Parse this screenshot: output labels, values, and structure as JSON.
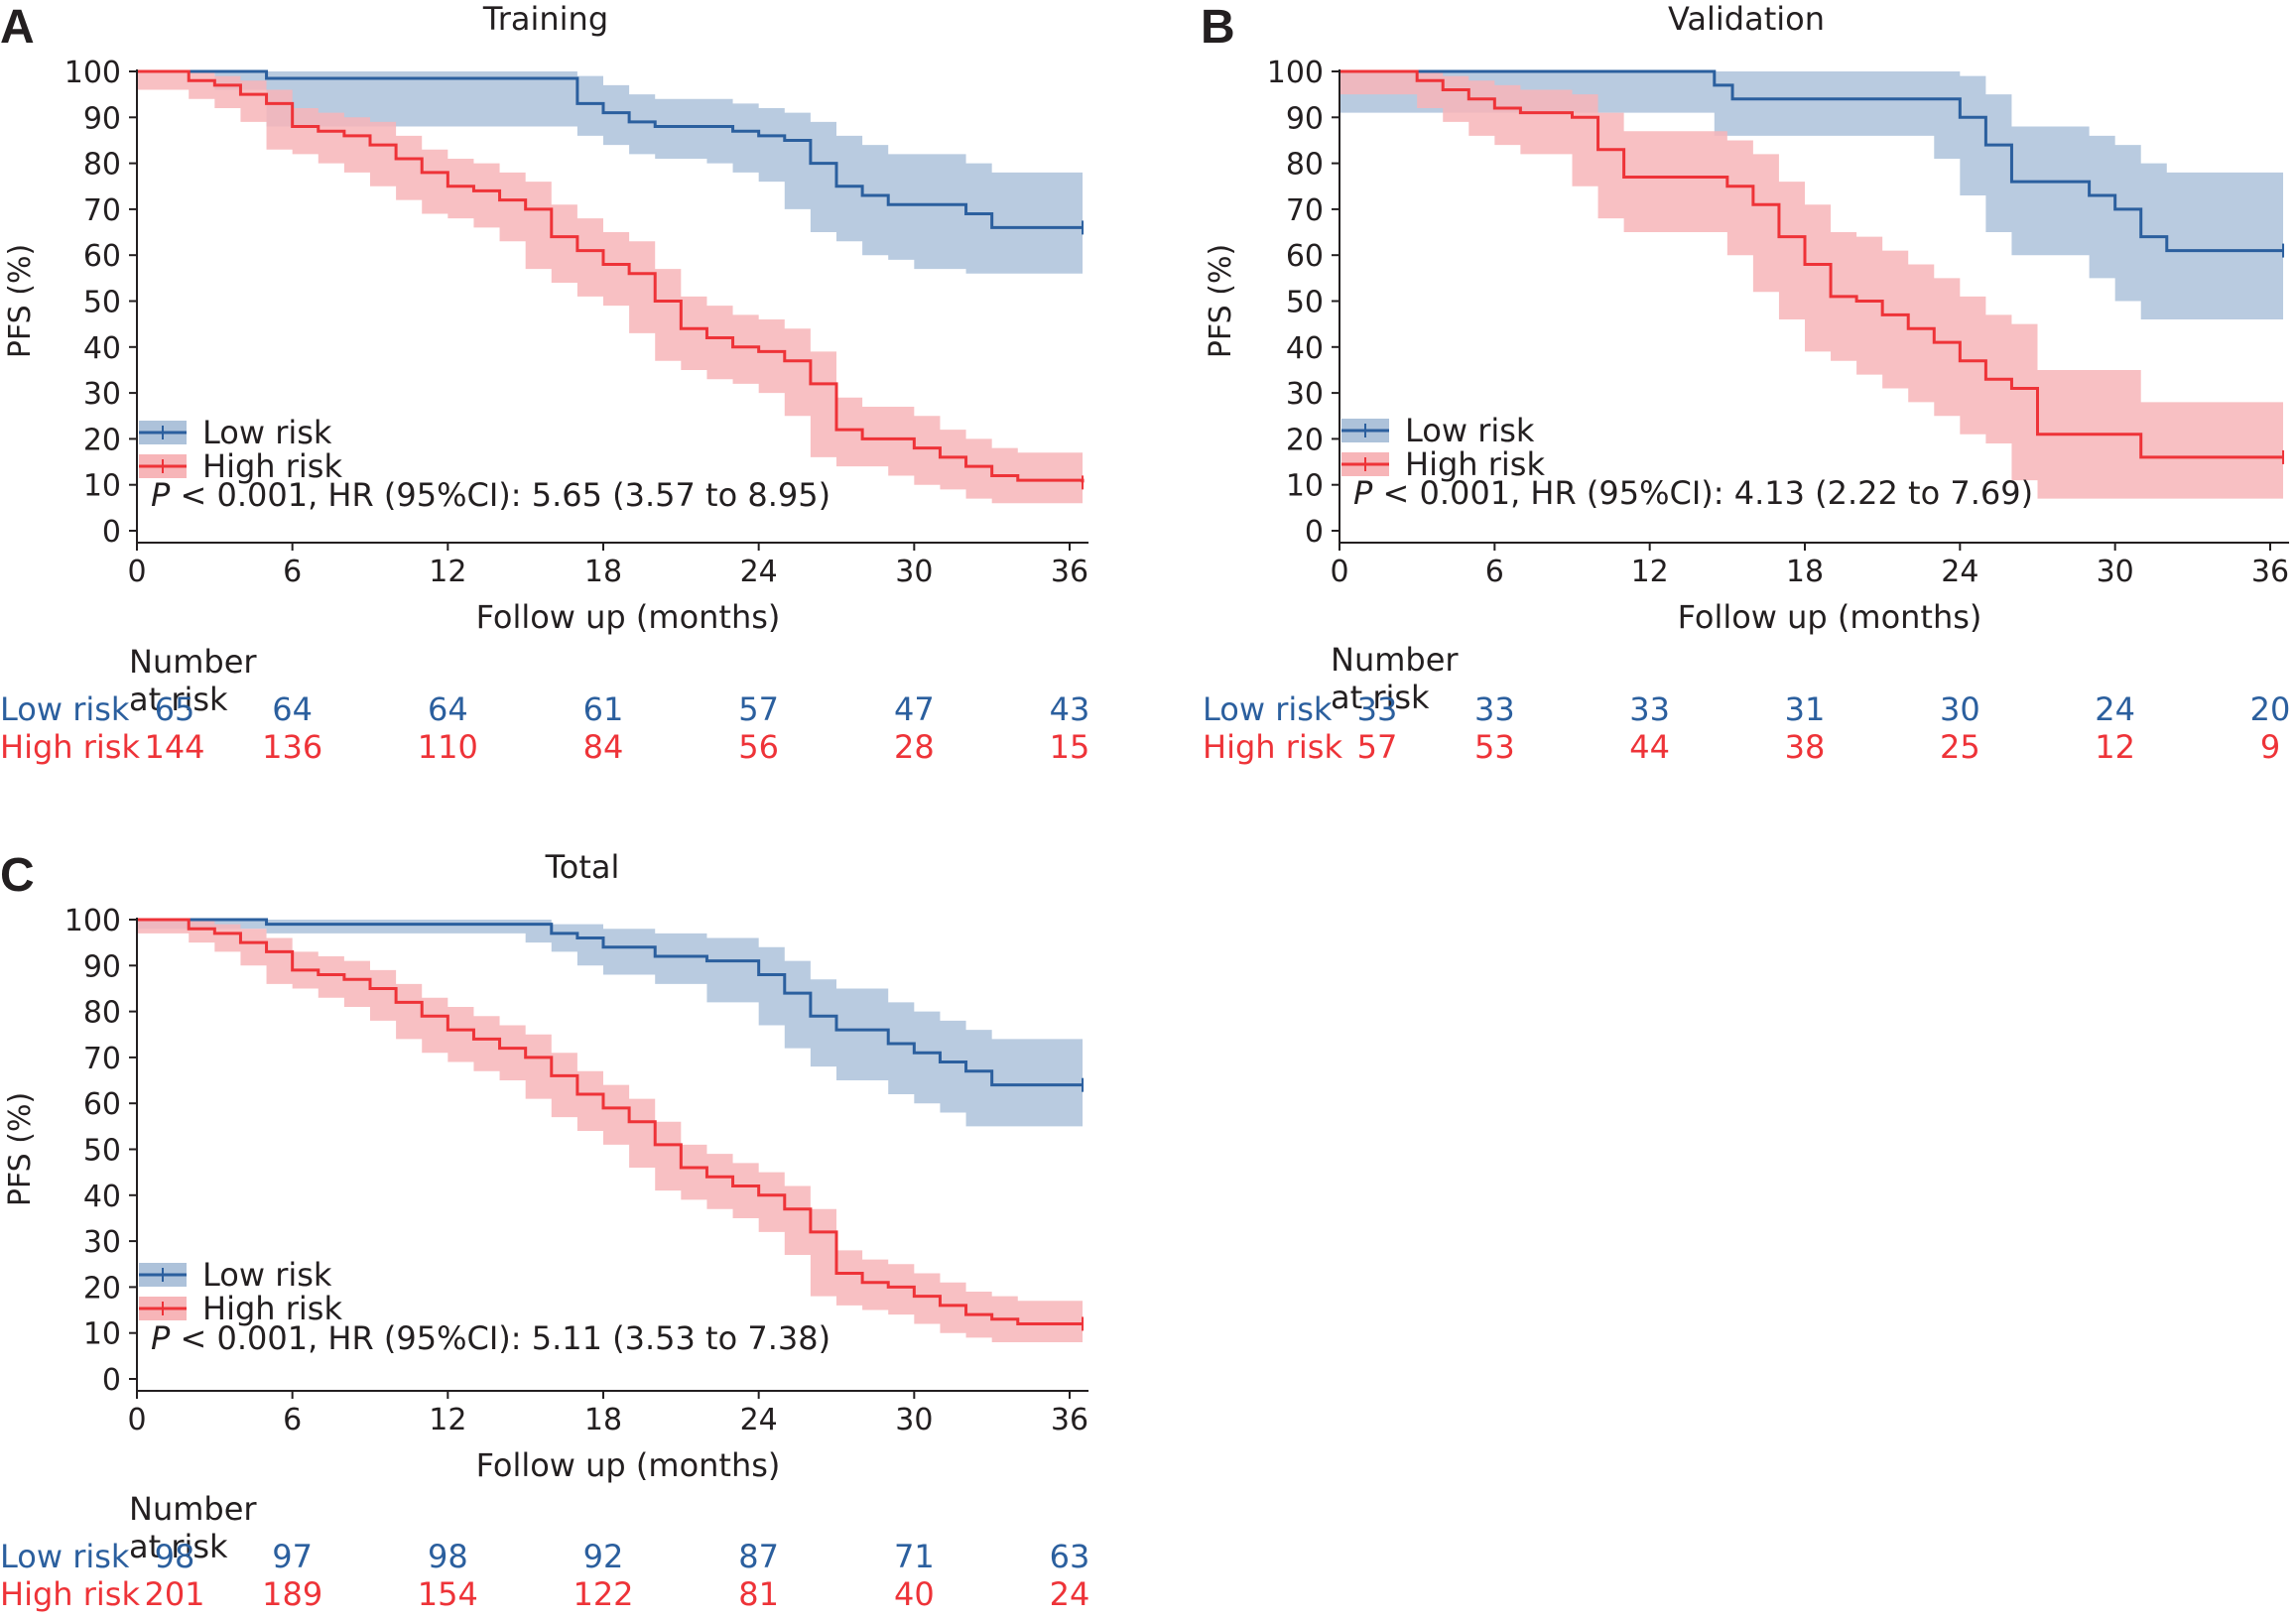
{
  "colors": {
    "low": "#2b5f9e",
    "high": "#ee3338",
    "low_band": "#adc2da",
    "high_band": "#f7b5b8",
    "axis": "#231f20"
  },
  "legend": {
    "low": "Low risk",
    "high": "High risk"
  },
  "risk_table_header": "Number at risk",
  "panels": [
    {
      "letter": "A",
      "title": "Training",
      "ylabel": "PFS (%)",
      "xlabel": "Follow up (months)",
      "p_prefix": "P",
      "stats": " < 0.001, HR (95%CI): 5.65 (3.57 to 8.95)",
      "risk": {
        "x": [
          0,
          6,
          12,
          18,
          24,
          30,
          36
        ],
        "low": [
          "65",
          "64",
          "64",
          "61",
          "57",
          "47",
          "43"
        ],
        "high": [
          "144",
          "136",
          "110",
          "84",
          "56",
          "28",
          "15"
        ]
      }
    },
    {
      "letter": "B",
      "title": "Validation",
      "ylabel": "PFS (%)",
      "xlabel": "Follow up (months)",
      "p_prefix": "P",
      "stats": " < 0.001, HR (95%CI): 4.13 (2.22 to 7.69)",
      "risk": {
        "x": [
          0,
          6,
          12,
          18,
          24,
          30,
          36
        ],
        "low": [
          "33",
          "33",
          "33",
          "31",
          "30",
          "24",
          "20"
        ],
        "high": [
          "57",
          "53",
          "44",
          "38",
          "25",
          "12",
          "9"
        ]
      }
    },
    {
      "letter": "C",
      "title": "Total",
      "ylabel": "PFS (%)",
      "xlabel": "Follow up (months)",
      "p_prefix": "P",
      "stats": " < 0.001, HR (95%CI): 5.11 (3.53 to 7.38)",
      "risk": {
        "x": [
          0,
          6,
          12,
          18,
          24,
          30,
          36
        ],
        "low": [
          "98",
          "97",
          "98",
          "92",
          "87",
          "71",
          "63"
        ],
        "high": [
          "201",
          "189",
          "154",
          "122",
          "81",
          "40",
          "24"
        ]
      }
    }
  ],
  "chart_data": [
    {
      "type": "line",
      "title": "Training",
      "xlabel": "Follow up (months)",
      "ylabel": "PFS (%)",
      "xlim": [
        0,
        36.5
      ],
      "ylim": [
        0,
        100
      ],
      "xticks": [
        0,
        6,
        12,
        18,
        24,
        30,
        36
      ],
      "yticks": [
        0,
        10,
        20,
        30,
        40,
        50,
        60,
        70,
        80,
        90,
        100
      ],
      "series": [
        {
          "name": "Low risk",
          "x": [
            0,
            3,
            5,
            17,
            18,
            19,
            20,
            22,
            23,
            24,
            25,
            26,
            27,
            28,
            29,
            30,
            32,
            33,
            36.5
          ],
          "y": [
            100,
            100,
            98.5,
            93,
            91,
            89,
            88,
            88,
            87,
            86,
            85,
            80,
            75,
            73,
            71,
            71,
            69,
            66,
            66
          ],
          "lower": [
            100,
            100,
            96,
            88,
            86,
            84,
            82,
            81,
            80,
            78,
            76,
            70,
            65,
            63,
            60,
            59,
            57,
            56,
            56
          ],
          "upper": [
            100,
            100,
            100,
            99,
            97,
            95,
            94,
            94,
            93,
            92,
            91,
            89,
            86,
            84,
            82,
            82,
            80,
            78,
            78
          ]
        },
        {
          "name": "High risk",
          "x": [
            0,
            2,
            3,
            4,
            5,
            6,
            7,
            8,
            9,
            10,
            11,
            12,
            13,
            14,
            15,
            16,
            17,
            18,
            19,
            20,
            21,
            22,
            23,
            24,
            25,
            26,
            27,
            28,
            29,
            30,
            31,
            32,
            33,
            34,
            36.5
          ],
          "y": [
            100,
            98,
            97,
            95,
            93,
            88,
            87,
            86,
            84,
            81,
            78,
            75,
            74,
            72,
            70,
            64,
            61,
            58,
            56,
            50,
            44,
            42,
            40,
            39,
            37,
            32,
            22,
            20,
            20,
            18,
            16,
            14,
            12,
            11,
            10.5
          ],
          "lower": [
            100,
            96,
            94,
            92,
            89,
            83,
            82,
            80,
            78,
            75,
            72,
            69,
            68,
            66,
            63,
            57,
            54,
            51,
            49,
            43,
            37,
            35,
            33,
            32,
            30,
            25,
            16,
            14,
            14,
            12,
            10,
            9,
            7,
            6,
            6
          ],
          "upper": [
            100,
            100,
            99,
            98,
            96,
            92,
            91,
            90,
            89,
            86,
            83,
            81,
            80,
            78,
            76,
            71,
            68,
            65,
            63,
            57,
            51,
            49,
            47,
            46,
            44,
            39,
            29,
            27,
            27,
            25,
            22,
            20,
            18,
            17,
            16
          ]
        }
      ]
    },
    {
      "type": "line",
      "title": "Validation",
      "xlabel": "Follow up (months)",
      "ylabel": "PFS (%)",
      "xlim": [
        0,
        36.5
      ],
      "ylim": [
        0,
        100
      ],
      "xticks": [
        0,
        6,
        12,
        18,
        24,
        30,
        36
      ],
      "yticks": [
        0,
        10,
        20,
        30,
        40,
        50,
        60,
        70,
        80,
        90,
        100
      ],
      "series": [
        {
          "name": "Low risk",
          "x": [
            0,
            14.5,
            15.2,
            23,
            24,
            25,
            26,
            29,
            30,
            31,
            32,
            36.5
          ],
          "y": [
            100,
            97,
            94,
            94,
            90,
            84,
            76,
            73,
            70,
            64,
            61,
            61
          ],
          "lower": [
            100,
            91,
            86,
            86,
            81,
            73,
            65,
            60,
            55,
            50,
            46,
            46
          ],
          "upper": [
            100,
            100,
            100,
            100,
            99,
            95,
            88,
            86,
            84,
            80,
            78,
            78
          ]
        },
        {
          "name": "High risk",
          "x": [
            0,
            3,
            4,
            5,
            6,
            7,
            9,
            10,
            11,
            15,
            16,
            17,
            18,
            19,
            20,
            21,
            22,
            23,
            24,
            25,
            26,
            27,
            31,
            36.5
          ],
          "y": [
            100,
            98,
            96,
            94,
            92,
            91,
            90,
            83,
            77,
            75,
            71,
            64,
            58,
            51,
            50,
            47,
            44,
            41,
            37,
            33,
            31,
            21,
            16,
            16
          ],
          "lower": [
            100,
            95,
            92,
            89,
            86,
            84,
            82,
            75,
            68,
            65,
            60,
            52,
            46,
            39,
            37,
            34,
            31,
            28,
            25,
            21,
            19,
            11,
            7,
            7
          ],
          "upper": [
            100,
            100,
            99,
            98,
            97,
            96,
            95,
            91,
            87,
            85,
            82,
            76,
            71,
            65,
            64,
            61,
            58,
            55,
            51,
            47,
            45,
            35,
            28,
            28
          ]
        }
      ]
    },
    {
      "type": "line",
      "title": "Total",
      "xlabel": "Follow up (months)",
      "ylabel": "PFS (%)",
      "xlim": [
        0,
        36.5
      ],
      "ylim": [
        0,
        100
      ],
      "xticks": [
        0,
        6,
        12,
        18,
        24,
        30,
        36
      ],
      "yticks": [
        0,
        10,
        20,
        30,
        40,
        50,
        60,
        70,
        80,
        90,
        100
      ],
      "series": [
        {
          "name": "Low risk",
          "x": [
            0,
            5,
            15,
            16,
            17,
            18,
            20,
            22,
            24,
            25,
            26,
            27,
            29,
            30,
            31,
            32,
            33,
            36.5
          ],
          "y": [
            100,
            99,
            99,
            97,
            96,
            94,
            92,
            91,
            88,
            84,
            79,
            76,
            73,
            71,
            69,
            67,
            64,
            64
          ],
          "lower": [
            100,
            98,
            97,
            95,
            93,
            90,
            88,
            86,
            82,
            77,
            72,
            68,
            65,
            62,
            60,
            58,
            55,
            55
          ],
          "upper": [
            100,
            100,
            100,
            99,
            99,
            98,
            97,
            96,
            94,
            91,
            87,
            85,
            82,
            80,
            78,
            76,
            74,
            74
          ]
        },
        {
          "name": "High risk",
          "x": [
            0,
            2,
            3,
            4,
            5,
            6,
            7,
            8,
            9,
            10,
            11,
            12,
            13,
            14,
            15,
            16,
            17,
            18,
            19,
            20,
            21,
            22,
            23,
            24,
            25,
            26,
            27,
            28,
            29,
            30,
            31,
            32,
            33,
            34,
            36.5
          ],
          "y": [
            100,
            98,
            97,
            95,
            93,
            89,
            88,
            87,
            85,
            82,
            79,
            76,
            74,
            72,
            70,
            66,
            62,
            59,
            56,
            51,
            46,
            44,
            42,
            40,
            37,
            32,
            23,
            21,
            20,
            18,
            16,
            14,
            13,
            12,
            12
          ],
          "lower": [
            100,
            97,
            95,
            93,
            90,
            86,
            85,
            83,
            81,
            78,
            74,
            71,
            69,
            67,
            65,
            61,
            57,
            54,
            51,
            46,
            41,
            39,
            37,
            35,
            32,
            27,
            18,
            16,
            15,
            14,
            12,
            10,
            9,
            8,
            8
          ],
          "upper": [
            100,
            100,
            99,
            98,
            96,
            93,
            92,
            91,
            89,
            86,
            83,
            81,
            79,
            77,
            75,
            71,
            67,
            64,
            61,
            56,
            51,
            49,
            47,
            45,
            42,
            37,
            28,
            26,
            25,
            23,
            21,
            19,
            18,
            17,
            17
          ]
        }
      ]
    }
  ]
}
